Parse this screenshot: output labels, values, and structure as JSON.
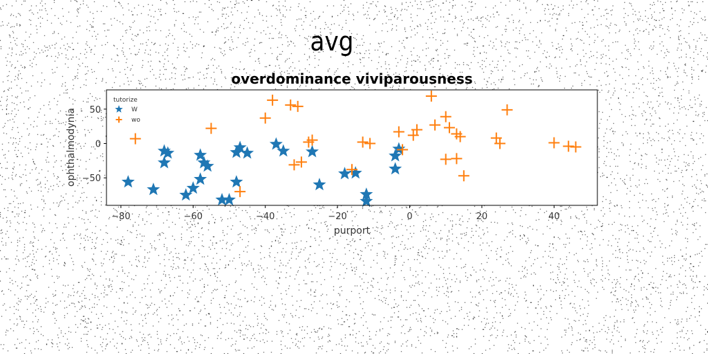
{
  "suptitle": "avg",
  "chart_data": {
    "type": "scatter",
    "title": "overdominance viviparousness",
    "xlabel": "purport",
    "ylabel": "ophthalmodynia",
    "xlim": [
      -84,
      52
    ],
    "ylim": [
      -90,
      78
    ],
    "xticks": [
      -80,
      -60,
      -40,
      -20,
      0,
      20,
      40
    ],
    "yticks": [
      -50,
      0,
      50
    ],
    "grid": false,
    "legend": {
      "title": "tutorize",
      "placement": "top-left"
    },
    "series": [
      {
        "name": "W",
        "marker": "star",
        "color": "#1f77b4",
        "points": [
          [
            -78,
            -56
          ],
          [
            -71,
            -67
          ],
          [
            -68,
            -11
          ],
          [
            -68,
            -28
          ],
          [
            -67,
            -14
          ],
          [
            -62,
            -75
          ],
          [
            -60,
            -65
          ],
          [
            -58,
            -17
          ],
          [
            -58,
            -52
          ],
          [
            -57,
            -28
          ],
          [
            -56,
            -33
          ],
          [
            -52,
            -82
          ],
          [
            -50,
            -82
          ],
          [
            -48,
            -56
          ],
          [
            -48,
            -13
          ],
          [
            -47,
            -6
          ],
          [
            -45,
            -14
          ],
          [
            -37,
            -1
          ],
          [
            -35,
            -11
          ],
          [
            -27,
            -12
          ],
          [
            -25,
            -60
          ],
          [
            -18,
            -44
          ],
          [
            -15,
            -43
          ],
          [
            -12,
            -74
          ],
          [
            -12,
            -84
          ],
          [
            -4,
            -37
          ],
          [
            -4,
            -18
          ],
          [
            -3,
            -8
          ]
        ]
      },
      {
        "name": "wo",
        "marker": "plus",
        "color": "#ff7f0e",
        "points": [
          [
            -76,
            7
          ],
          [
            -55,
            22
          ],
          [
            -47,
            -70
          ],
          [
            -40,
            37
          ],
          [
            -38,
            63
          ],
          [
            -33,
            56
          ],
          [
            -31,
            54
          ],
          [
            -32,
            -31
          ],
          [
            -30,
            -27
          ],
          [
            -28,
            2
          ],
          [
            -27,
            5
          ],
          [
            -16,
            -38
          ],
          [
            -13,
            2
          ],
          [
            -11,
            0
          ],
          [
            -3,
            17
          ],
          [
            -2,
            -9
          ],
          [
            1,
            12
          ],
          [
            2,
            20
          ],
          [
            6,
            69
          ],
          [
            7,
            27
          ],
          [
            10,
            39
          ],
          [
            10,
            -23
          ],
          [
            11,
            23
          ],
          [
            13,
            14
          ],
          [
            13,
            -22
          ],
          [
            14,
            10
          ],
          [
            15,
            -47
          ],
          [
            24,
            8
          ],
          [
            25,
            0
          ],
          [
            27,
            49
          ],
          [
            40,
            1
          ],
          [
            44,
            -4
          ],
          [
            46,
            -5
          ]
        ]
      }
    ]
  }
}
